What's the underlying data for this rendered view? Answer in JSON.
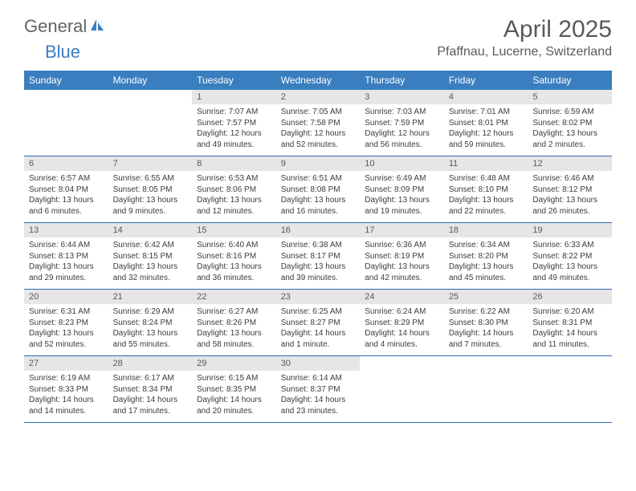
{
  "brand": {
    "part1": "General",
    "part2": "Blue"
  },
  "title": "April 2025",
  "location": "Pfaffnau, Lucerne, Switzerland",
  "colors": {
    "header_bg": "#3a7ebf",
    "header_text": "#ffffff",
    "daynum_bg": "#e6e6e6",
    "border": "#2f6ca8",
    "text": "#3c3c3c",
    "title_text": "#5a5a5a"
  },
  "weekdays": [
    "Sunday",
    "Monday",
    "Tuesday",
    "Wednesday",
    "Thursday",
    "Friday",
    "Saturday"
  ],
  "weeks": [
    [
      null,
      null,
      {
        "n": 1,
        "sr": "7:07 AM",
        "ss": "7:57 PM",
        "dl": "12 hours and 49 minutes."
      },
      {
        "n": 2,
        "sr": "7:05 AM",
        "ss": "7:58 PM",
        "dl": "12 hours and 52 minutes."
      },
      {
        "n": 3,
        "sr": "7:03 AM",
        "ss": "7:59 PM",
        "dl": "12 hours and 56 minutes."
      },
      {
        "n": 4,
        "sr": "7:01 AM",
        "ss": "8:01 PM",
        "dl": "12 hours and 59 minutes."
      },
      {
        "n": 5,
        "sr": "6:59 AM",
        "ss": "8:02 PM",
        "dl": "13 hours and 2 minutes."
      }
    ],
    [
      {
        "n": 6,
        "sr": "6:57 AM",
        "ss": "8:04 PM",
        "dl": "13 hours and 6 minutes."
      },
      {
        "n": 7,
        "sr": "6:55 AM",
        "ss": "8:05 PM",
        "dl": "13 hours and 9 minutes."
      },
      {
        "n": 8,
        "sr": "6:53 AM",
        "ss": "8:06 PM",
        "dl": "13 hours and 12 minutes."
      },
      {
        "n": 9,
        "sr": "6:51 AM",
        "ss": "8:08 PM",
        "dl": "13 hours and 16 minutes."
      },
      {
        "n": 10,
        "sr": "6:49 AM",
        "ss": "8:09 PM",
        "dl": "13 hours and 19 minutes."
      },
      {
        "n": 11,
        "sr": "6:48 AM",
        "ss": "8:10 PM",
        "dl": "13 hours and 22 minutes."
      },
      {
        "n": 12,
        "sr": "6:46 AM",
        "ss": "8:12 PM",
        "dl": "13 hours and 26 minutes."
      }
    ],
    [
      {
        "n": 13,
        "sr": "6:44 AM",
        "ss": "8:13 PM",
        "dl": "13 hours and 29 minutes."
      },
      {
        "n": 14,
        "sr": "6:42 AM",
        "ss": "8:15 PM",
        "dl": "13 hours and 32 minutes."
      },
      {
        "n": 15,
        "sr": "6:40 AM",
        "ss": "8:16 PM",
        "dl": "13 hours and 36 minutes."
      },
      {
        "n": 16,
        "sr": "6:38 AM",
        "ss": "8:17 PM",
        "dl": "13 hours and 39 minutes."
      },
      {
        "n": 17,
        "sr": "6:36 AM",
        "ss": "8:19 PM",
        "dl": "13 hours and 42 minutes."
      },
      {
        "n": 18,
        "sr": "6:34 AM",
        "ss": "8:20 PM",
        "dl": "13 hours and 45 minutes."
      },
      {
        "n": 19,
        "sr": "6:33 AM",
        "ss": "8:22 PM",
        "dl": "13 hours and 49 minutes."
      }
    ],
    [
      {
        "n": 20,
        "sr": "6:31 AM",
        "ss": "8:23 PM",
        "dl": "13 hours and 52 minutes."
      },
      {
        "n": 21,
        "sr": "6:29 AM",
        "ss": "8:24 PM",
        "dl": "13 hours and 55 minutes."
      },
      {
        "n": 22,
        "sr": "6:27 AM",
        "ss": "8:26 PM",
        "dl": "13 hours and 58 minutes."
      },
      {
        "n": 23,
        "sr": "6:25 AM",
        "ss": "8:27 PM",
        "dl": "14 hours and 1 minute."
      },
      {
        "n": 24,
        "sr": "6:24 AM",
        "ss": "8:29 PM",
        "dl": "14 hours and 4 minutes."
      },
      {
        "n": 25,
        "sr": "6:22 AM",
        "ss": "8:30 PM",
        "dl": "14 hours and 7 minutes."
      },
      {
        "n": 26,
        "sr": "6:20 AM",
        "ss": "8:31 PM",
        "dl": "14 hours and 11 minutes."
      }
    ],
    [
      {
        "n": 27,
        "sr": "6:19 AM",
        "ss": "8:33 PM",
        "dl": "14 hours and 14 minutes."
      },
      {
        "n": 28,
        "sr": "6:17 AM",
        "ss": "8:34 PM",
        "dl": "14 hours and 17 minutes."
      },
      {
        "n": 29,
        "sr": "6:15 AM",
        "ss": "8:35 PM",
        "dl": "14 hours and 20 minutes."
      },
      {
        "n": 30,
        "sr": "6:14 AM",
        "ss": "8:37 PM",
        "dl": "14 hours and 23 minutes."
      },
      null,
      null,
      null
    ]
  ],
  "labels": {
    "sunrise": "Sunrise:",
    "sunset": "Sunset:",
    "daylight": "Daylight:"
  }
}
